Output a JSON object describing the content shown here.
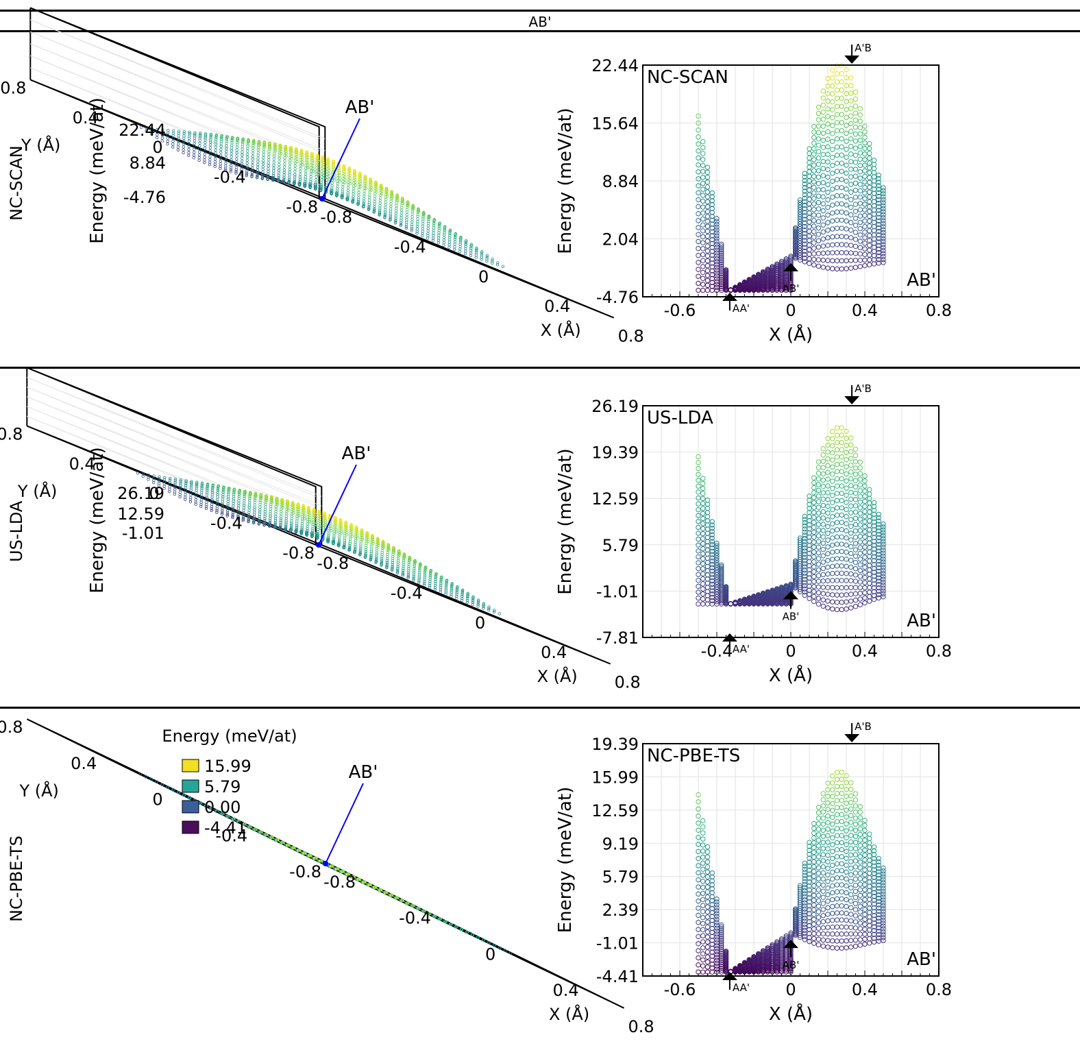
{
  "header": {
    "title": "AB'"
  },
  "rows": [
    {
      "label": "NC-SCAN",
      "surface": {
        "zlabel": "Energy (meV/at)",
        "zticks": [
          "22.44",
          "8.84",
          "-4.76"
        ],
        "xlabel": "X (Å)",
        "ylabel": "Y (Å)",
        "xticks": [
          "-0.8",
          "-0.4",
          "0",
          "0.4",
          "0.8"
        ],
        "yticks": [
          "-0.8",
          "-0.4",
          "0",
          "0.4",
          "0.8"
        ],
        "marker_label": "AB'"
      },
      "profile": {
        "inner_label": "NC-SCAN",
        "corner_label": "AB'",
        "ylabel": "Energy (meV/at)",
        "xlabel": "X (Å)",
        "yticks": [
          "22.44",
          "15.64",
          "8.84",
          "2.04",
          "-4.76"
        ],
        "xticks": [
          "-0.6",
          "0",
          "0.4",
          "0.8"
        ],
        "arrows": [
          "A'B",
          "AB'",
          "AA'"
        ]
      }
    },
    {
      "label": "US-LDA",
      "surface": {
        "zlabel": "Energy (meV/at)",
        "zticks": [
          "26.19",
          "12.59",
          "-1.01"
        ],
        "xlabel": "X (Å)",
        "ylabel": "Y (Å)",
        "xticks": [
          "-0.8",
          "-0.4",
          "0",
          "0.4",
          "0.8"
        ],
        "yticks": [
          "-0.8",
          "-0.4",
          "0",
          "0.4",
          "0.8"
        ],
        "marker_label": "AB'"
      },
      "profile": {
        "inner_label": "US-LDA",
        "corner_label": "AB'",
        "ylabel": "Energy (meV/at)",
        "xlabel": "X (Å)",
        "yticks": [
          "26.19",
          "19.39",
          "12.59",
          "5.79",
          "-1.01",
          "-7.81"
        ],
        "xticks": [
          "-0.4",
          "0",
          "0.4",
          "0.8"
        ],
        "arrows": [
          "A'B",
          "AB'",
          "AA'"
        ]
      }
    },
    {
      "label": "NC-PBE-TS",
      "surface": {
        "legend_title": "Energy (meV/at)",
        "legend": [
          {
            "value": "15.99",
            "color": "#f0e020"
          },
          {
            "value": "5.79",
            "color": "#26a69a"
          },
          {
            "value": "0.00",
            "color": "#3b5f9a"
          },
          {
            "value": "-4.41",
            "color": "#4a0f5c"
          }
        ],
        "xlabel": "X (Å)",
        "ylabel": "Y (Å)",
        "xticks": [
          "-0.8",
          "-0.4",
          "0",
          "0.4",
          "0.8"
        ],
        "yticks": [
          "-0.8",
          "-0.4",
          "0",
          "0.4",
          "0.8"
        ],
        "marker_label": "AB'"
      },
      "profile": {
        "inner_label": "NC-PBE-TS",
        "corner_label": "AB'",
        "ylabel": "Energy (meV/at)",
        "xlabel": "X (Å)",
        "yticks": [
          "19.39",
          "15.99",
          "12.59",
          "9.19",
          "5.79",
          "2.39",
          "-1.01",
          "-4.41"
        ],
        "xticks": [
          "-0.6",
          "0",
          "0.4",
          "0.8"
        ],
        "arrows": [
          "A'B",
          "AB'",
          "AA'"
        ]
      }
    }
  ],
  "chart_data": [
    {
      "type": "scatter",
      "title": "NC-SCAN",
      "xlabel": "X (Å)",
      "ylabel": "Energy (meV/at)",
      "xlim": [
        -0.8,
        0.8
      ],
      "ylim": [
        -4.76,
        22.44
      ],
      "x_range": [
        -0.5,
        0.5
      ],
      "points_labeled": [
        {
          "label": "AA'",
          "x": -0.33,
          "y": -4.0
        },
        {
          "label": "AB'",
          "x": 0.0,
          "y": 0.0
        },
        {
          "label": "A'B",
          "x": 0.33,
          "y": 22.44
        }
      ]
    },
    {
      "type": "scatter",
      "title": "US-LDA",
      "xlabel": "X (Å)",
      "ylabel": "Energy (meV/at)",
      "xlim": [
        -0.8,
        0.8
      ],
      "ylim": [
        -7.81,
        26.19
      ],
      "x_range": [
        -0.5,
        0.5
      ],
      "points_labeled": [
        {
          "label": "AA'",
          "x": -0.33,
          "y": -2.9
        },
        {
          "label": "AB'",
          "x": 0.0,
          "y": 0.0
        },
        {
          "label": "A'B",
          "x": 0.33,
          "y": 23.0
        }
      ]
    },
    {
      "type": "scatter",
      "title": "NC-PBE-TS",
      "xlabel": "X (Å)",
      "ylabel": "Energy (meV/at)",
      "xlim": [
        -0.8,
        0.8
      ],
      "ylim": [
        -4.41,
        19.39
      ],
      "x_range": [
        -0.5,
        0.5
      ],
      "points_labeled": [
        {
          "label": "AA'",
          "x": -0.33,
          "y": -4.0
        },
        {
          "label": "AB'",
          "x": 0.0,
          "y": 0.0
        },
        {
          "label": "A'B",
          "x": 0.33,
          "y": 16.5
        }
      ]
    }
  ]
}
